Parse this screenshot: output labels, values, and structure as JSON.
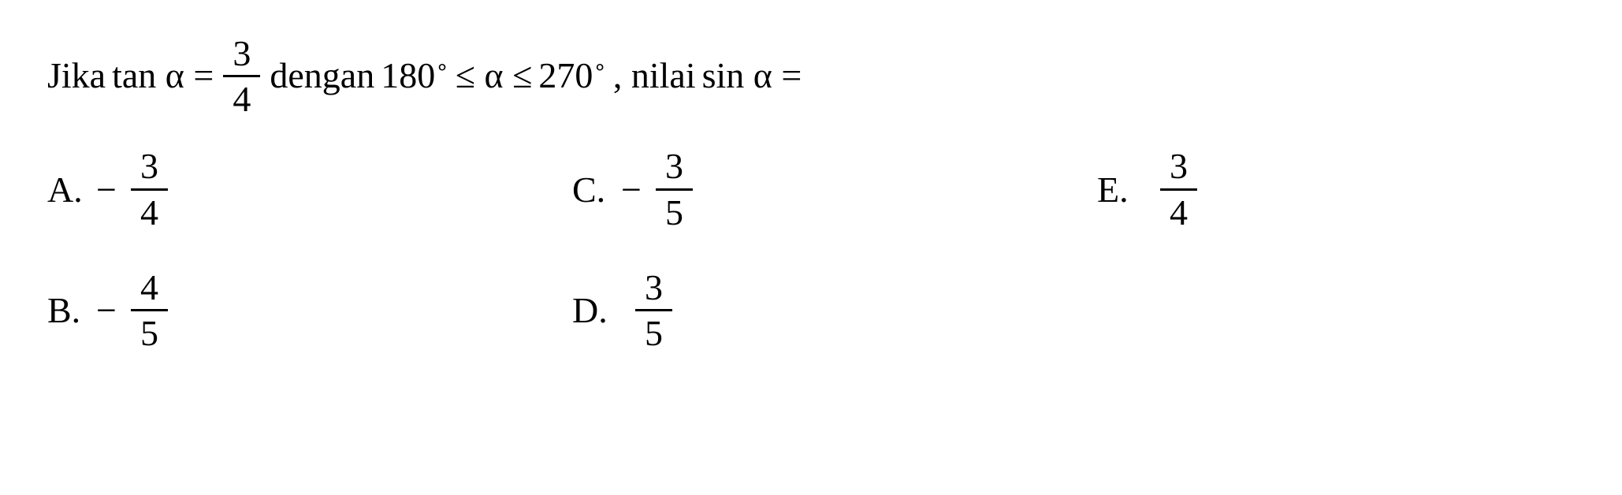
{
  "question": {
    "prefix": "Jika ",
    "tanExpr": "tan α = ",
    "fracNum1": "3",
    "fracDen1": "4",
    "middle": " dengan ",
    "range1": "180",
    "rangeOp1": " ≤ α ≤ ",
    "range2": "270",
    "suffix": ", nilai ",
    "sinExpr": "sin α ="
  },
  "options": {
    "A": {
      "label": "A.",
      "neg": "−",
      "num": "3",
      "den": "4"
    },
    "B": {
      "label": "B.",
      "neg": "−",
      "num": "4",
      "den": "5"
    },
    "C": {
      "label": "C.",
      "neg": "−",
      "num": "3",
      "den": "5"
    },
    "D": {
      "label": "D.",
      "neg": "",
      "num": "3",
      "den": "5"
    },
    "E": {
      "label": "E.",
      "neg": "",
      "num": "3",
      "den": "4"
    }
  },
  "colors": {
    "background": "#ffffff",
    "text": "#000000"
  },
  "typography": {
    "fontSize": 46,
    "fontFamily": "Times New Roman"
  }
}
